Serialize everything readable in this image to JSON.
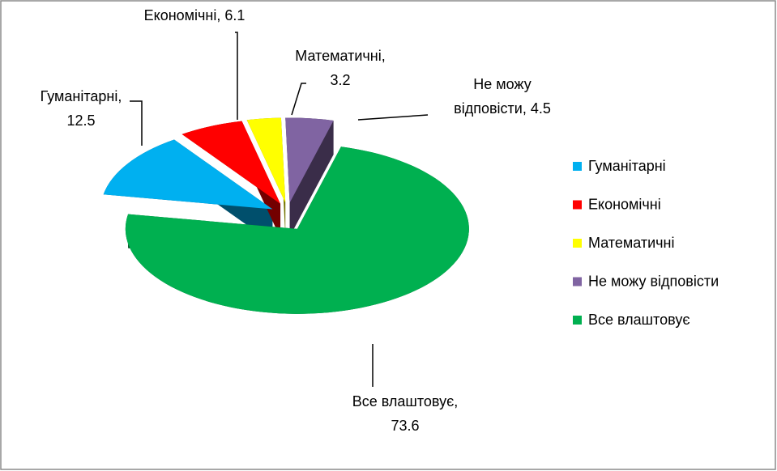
{
  "chart_data": {
    "type": "pie3d",
    "categories": [
      "Гуманітарні",
      "Економічні",
      "Математичні",
      "Не можу відповісти",
      "Все влаштовує"
    ],
    "values": [
      12.5,
      6.1,
      3.2,
      4.5,
      73.6
    ],
    "value_labels": [
      "Гуманітарні,\n12.5",
      "Економічні, 6.1",
      "Математичні,\n3.2",
      "Не можу\nвідповісти, 4.5",
      "Все влаштовує,\n73.6"
    ],
    "colors": [
      "#00b0f0",
      "#ff0000",
      "#ffff00",
      "#8064a2",
      "#00b050"
    ],
    "legend": "right"
  }
}
